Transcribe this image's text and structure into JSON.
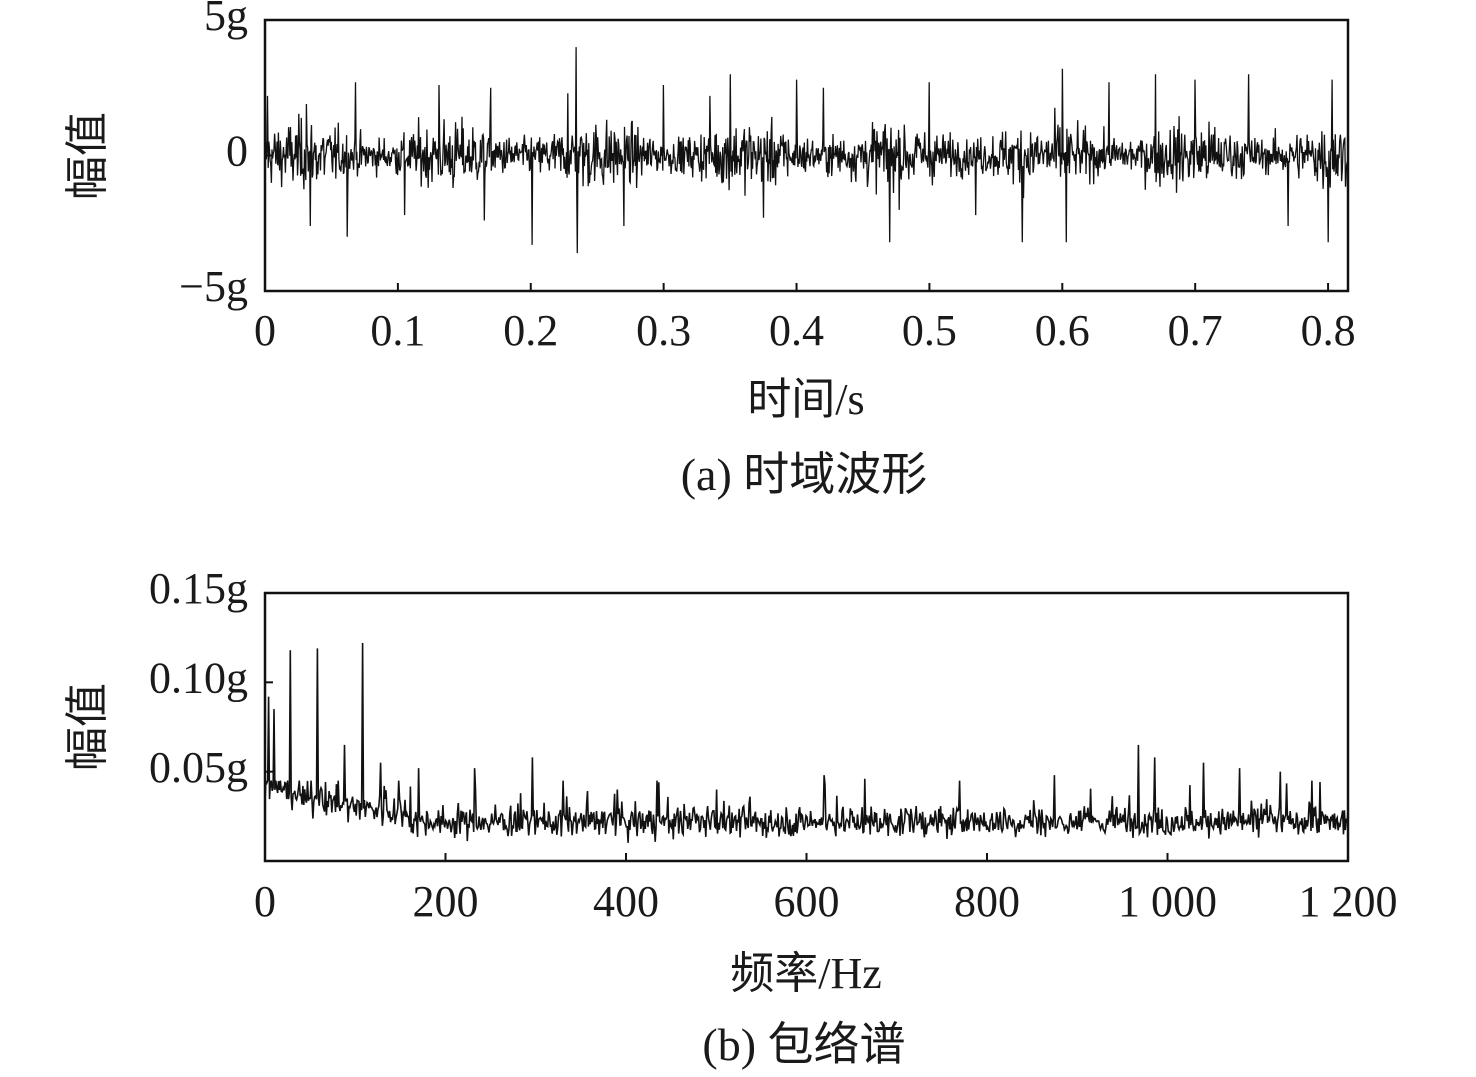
{
  "chart_data": [
    {
      "type": "line",
      "caption": "(a) 时域波形",
      "xlabel": "时间/s",
      "ylabel": "幅值",
      "xlim": [
        0,
        0.815
      ],
      "ylim": [
        -5,
        5
      ],
      "y_unit": "g",
      "x_ticks": [
        "0",
        "0.1",
        "0.2",
        "0.3",
        "0.4",
        "0.5",
        "0.6",
        "0.7",
        "0.8"
      ],
      "x_tick_values": [
        0,
        0.1,
        0.2,
        0.3,
        0.4,
        0.5,
        0.6,
        0.7,
        0.8
      ],
      "y_ticks": [
        {
          "value": 5,
          "label": "5g"
        },
        {
          "value": 0,
          "label": "0"
        },
        {
          "value": -5,
          "label": "−5g"
        }
      ],
      "grid": false,
      "series_color": "#111111",
      "peaks": [
        {
          "x": 0.002,
          "y": 2.2
        },
        {
          "x": 0.031,
          "y": 1.9
        },
        {
          "x": 0.034,
          "y": -2.6
        },
        {
          "x": 0.062,
          "y": -3.0
        },
        {
          "x": 0.068,
          "y": 2.7
        },
        {
          "x": 0.105,
          "y": -2.2
        },
        {
          "x": 0.131,
          "y": 2.6
        },
        {
          "x": 0.165,
          "y": -2.4
        },
        {
          "x": 0.17,
          "y": 2.5
        },
        {
          "x": 0.201,
          "y": -3.3
        },
        {
          "x": 0.228,
          "y": 2.3
        },
        {
          "x": 0.234,
          "y": 4.0
        },
        {
          "x": 0.235,
          "y": -3.6
        },
        {
          "x": 0.27,
          "y": -2.6
        },
        {
          "x": 0.3,
          "y": 2.6
        },
        {
          "x": 0.335,
          "y": 2.2
        },
        {
          "x": 0.35,
          "y": 3.0
        },
        {
          "x": 0.375,
          "y": -2.3
        },
        {
          "x": 0.4,
          "y": 2.8
        },
        {
          "x": 0.42,
          "y": 2.5
        },
        {
          "x": 0.47,
          "y": -3.2
        },
        {
          "x": 0.5,
          "y": 2.7
        },
        {
          "x": 0.535,
          "y": -2.2
        },
        {
          "x": 0.57,
          "y": -3.2
        },
        {
          "x": 0.6,
          "y": 3.2
        },
        {
          "x": 0.603,
          "y": -3.2
        },
        {
          "x": 0.635,
          "y": 2.7
        },
        {
          "x": 0.67,
          "y": 3.0
        },
        {
          "x": 0.7,
          "y": 2.8
        },
        {
          "x": 0.74,
          "y": 3.0
        },
        {
          "x": 0.77,
          "y": -2.6
        },
        {
          "x": 0.8,
          "y": -3.2
        },
        {
          "x": 0.803,
          "y": 2.8
        }
      ],
      "noise_amplitude_rms": 0.9
    },
    {
      "type": "line",
      "caption": "(b) 包络谱",
      "xlabel": "频率/Hz",
      "ylabel": "幅值",
      "xlim": [
        0,
        1200
      ],
      "ylim": [
        0,
        0.15
      ],
      "y_unit": "g",
      "x_ticks": [
        "0",
        "200",
        "400",
        "600",
        "800",
        "1 000",
        "1 200"
      ],
      "x_tick_values": [
        0,
        200,
        400,
        600,
        800,
        1000,
        1200
      ],
      "y_ticks": [
        {
          "value": 0.15,
          "label": "0.15g"
        },
        {
          "value": 0.1,
          "label": "0.10g"
        },
        {
          "value": 0.05,
          "label": "0.05g"
        }
      ],
      "grid": false,
      "series_color": "#111111",
      "peaks": [
        {
          "x": 4,
          "y": 0.092
        },
        {
          "x": 10,
          "y": 0.085
        },
        {
          "x": 28,
          "y": 0.118
        },
        {
          "x": 58,
          "y": 0.119
        },
        {
          "x": 88,
          "y": 0.065
        },
        {
          "x": 108,
          "y": 0.122
        },
        {
          "x": 128,
          "y": 0.055
        },
        {
          "x": 170,
          "y": 0.052
        },
        {
          "x": 232,
          "y": 0.052
        },
        {
          "x": 296,
          "y": 0.058
        },
        {
          "x": 330,
          "y": 0.045
        },
        {
          "x": 390,
          "y": 0.04
        },
        {
          "x": 434,
          "y": 0.045
        },
        {
          "x": 500,
          "y": 0.04
        },
        {
          "x": 620,
          "y": 0.048
        },
        {
          "x": 665,
          "y": 0.046
        },
        {
          "x": 770,
          "y": 0.045
        },
        {
          "x": 875,
          "y": 0.048
        },
        {
          "x": 968,
          "y": 0.065
        },
        {
          "x": 986,
          "y": 0.058
        },
        {
          "x": 1040,
          "y": 0.055
        },
        {
          "x": 1080,
          "y": 0.052
        },
        {
          "x": 1125,
          "y": 0.05
        },
        {
          "x": 1160,
          "y": 0.045
        }
      ],
      "baseline_level": 0.022
    }
  ]
}
